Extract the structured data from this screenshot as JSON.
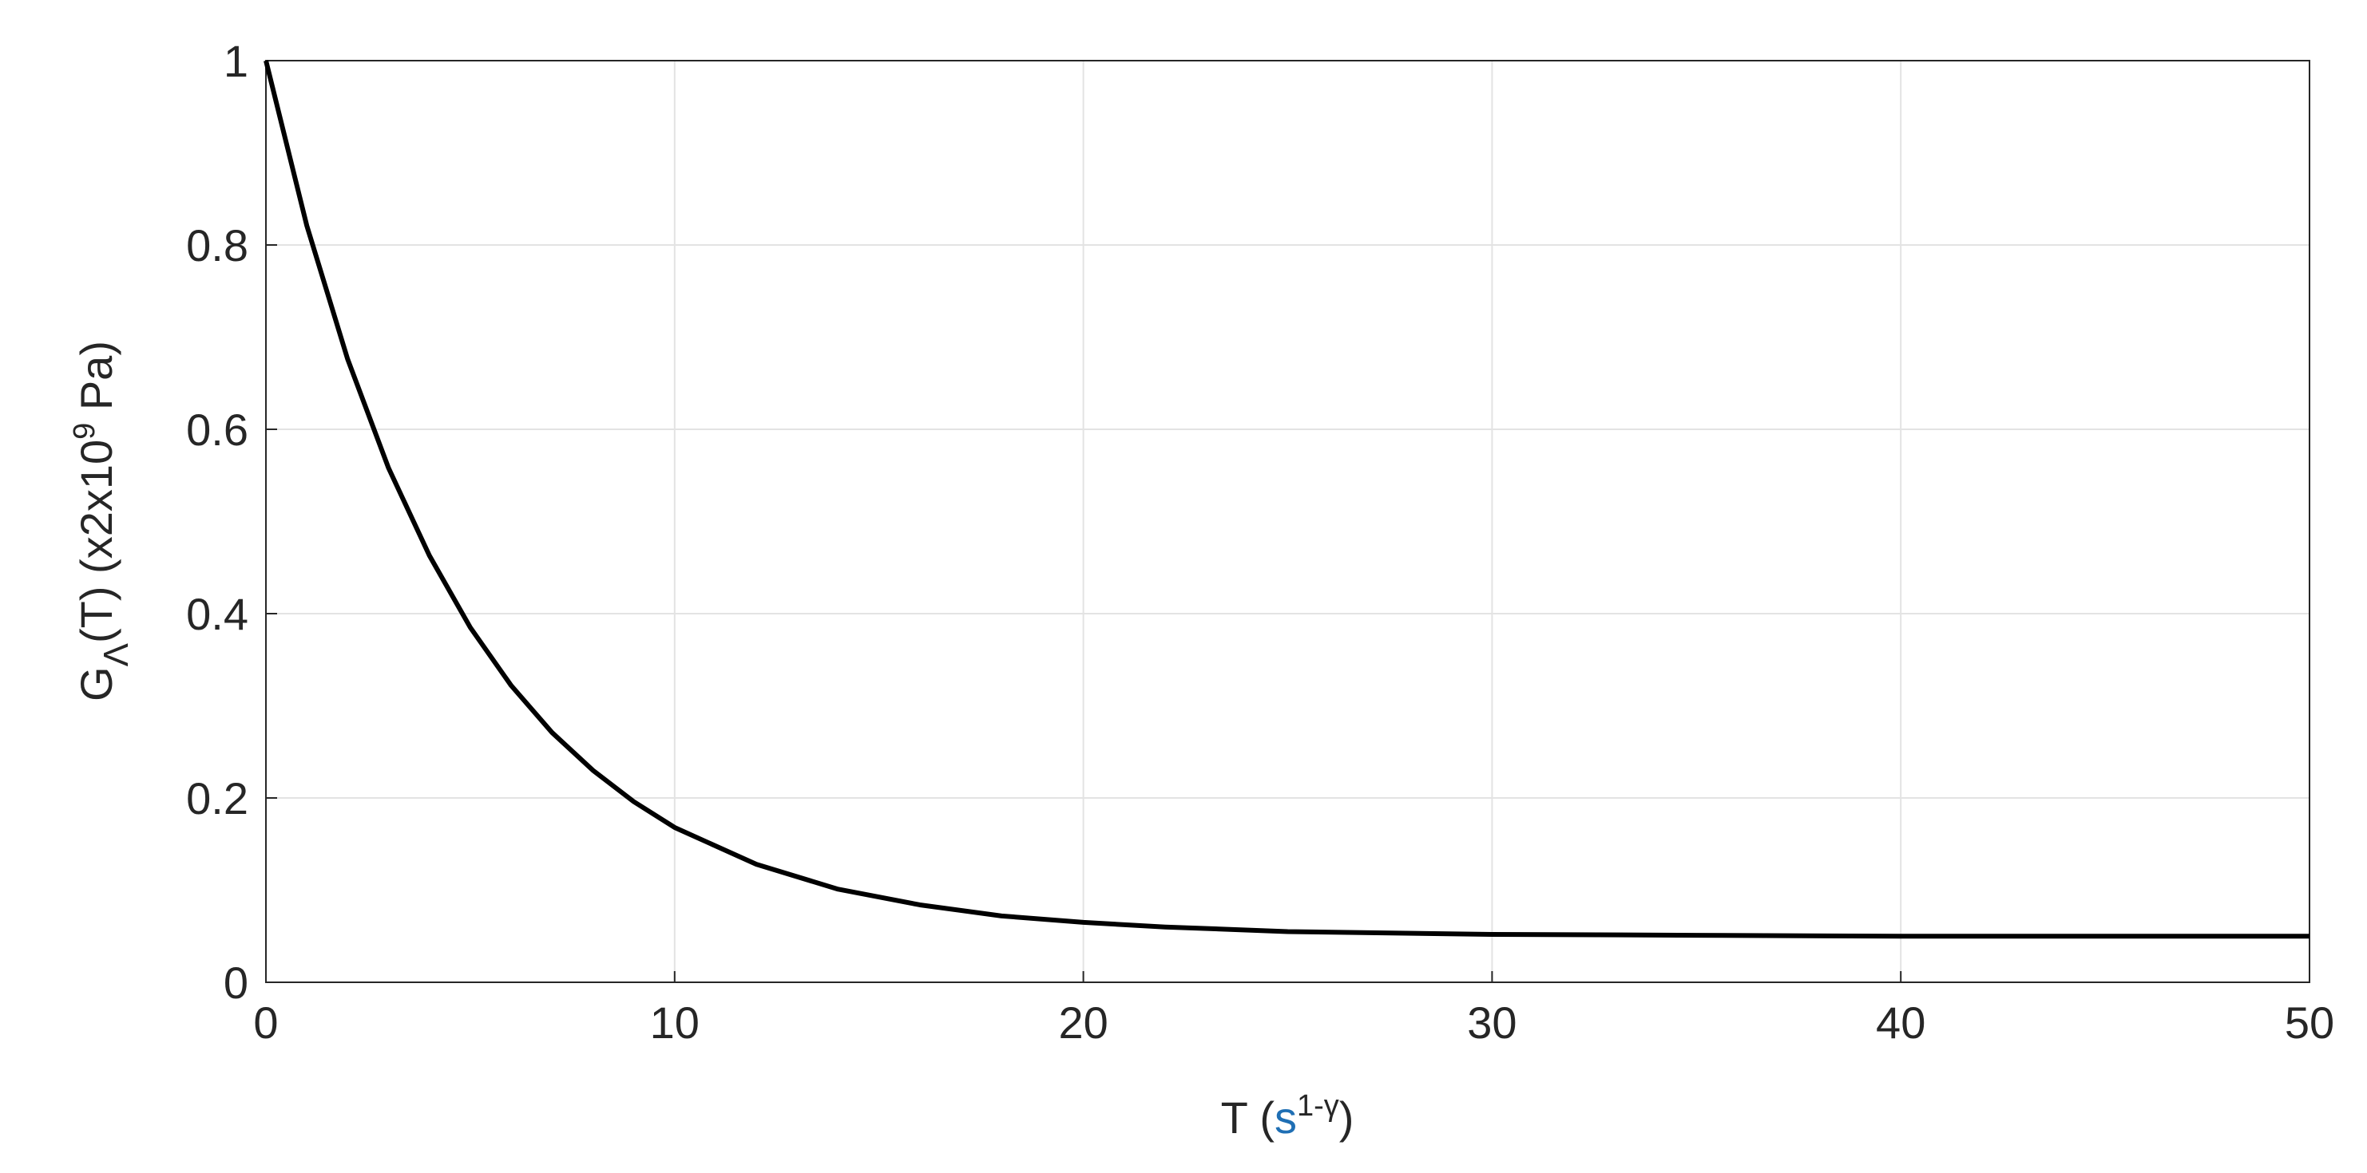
{
  "chart_data": {
    "type": "line",
    "x": [
      0,
      1,
      2,
      3,
      4,
      5,
      6,
      7,
      8,
      9,
      10,
      12,
      14,
      16,
      18,
      20,
      22,
      25,
      30,
      35,
      40,
      45,
      50
    ],
    "series": [
      {
        "color": "#000000",
        "values": [
          1,
          0.821,
          0.676,
          0.558,
          0.463,
          0.385,
          0.322,
          0.271,
          0.23,
          0.196,
          0.168,
          0.128,
          0.101,
          0.084,
          0.072,
          0.065,
          0.06,
          0.055,
          0.052,
          0.051,
          0.05,
          0.05,
          0.05
        ]
      }
    ],
    "xlim": [
      0,
      50
    ],
    "xticks": [
      0,
      10,
      20,
      30,
      40,
      50
    ],
    "ylim": [
      0,
      1
    ],
    "yticks": [
      0,
      0.2,
      0.4,
      0.6,
      0.8,
      1
    ],
    "grid": true,
    "xlabel": {
      "main": "T (",
      "unit": "s",
      "sup": "1-γ",
      "end": ")"
    },
    "ylabel": {
      "main": "G",
      "sub": "Λ",
      "mid": "(T) (x2x10",
      "sup": "9",
      "end": " Pa)"
    }
  }
}
